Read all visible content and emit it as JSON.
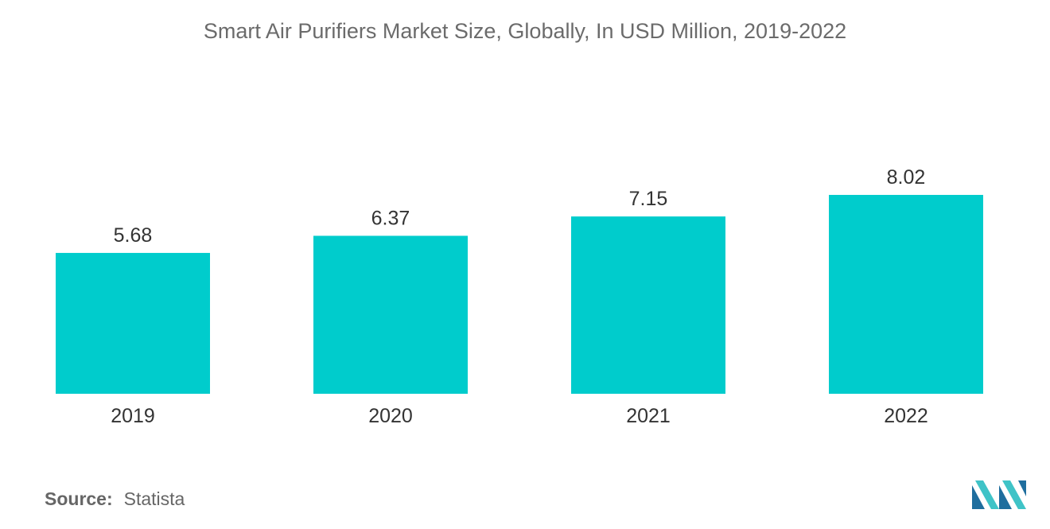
{
  "colors": {
    "bar": "#00cccc",
    "value_label": "#333333",
    "tick_label": "#333333",
    "logo_dark": "#1f6e9e",
    "logo_light": "#3fc3c7"
  },
  "chart_data": {
    "type": "bar",
    "title": "Smart Air Purifiers Market Size, Globally, In USD Million, 2019-2022",
    "categories": [
      "2019",
      "2020",
      "2021",
      "2022"
    ],
    "values": [
      5.68,
      6.37,
      7.15,
      8.02
    ],
    "value_labels": [
      "5.68",
      "6.37",
      "7.15",
      "8.02"
    ],
    "xlabel": "",
    "ylabel": "",
    "ylim": [
      0,
      8.02
    ],
    "grid": false,
    "y_axis_visible": false
  },
  "source": {
    "label": "Source:",
    "value": "Statista"
  },
  "logo": {
    "icon": "mordor-intelligence-logo-icon"
  }
}
